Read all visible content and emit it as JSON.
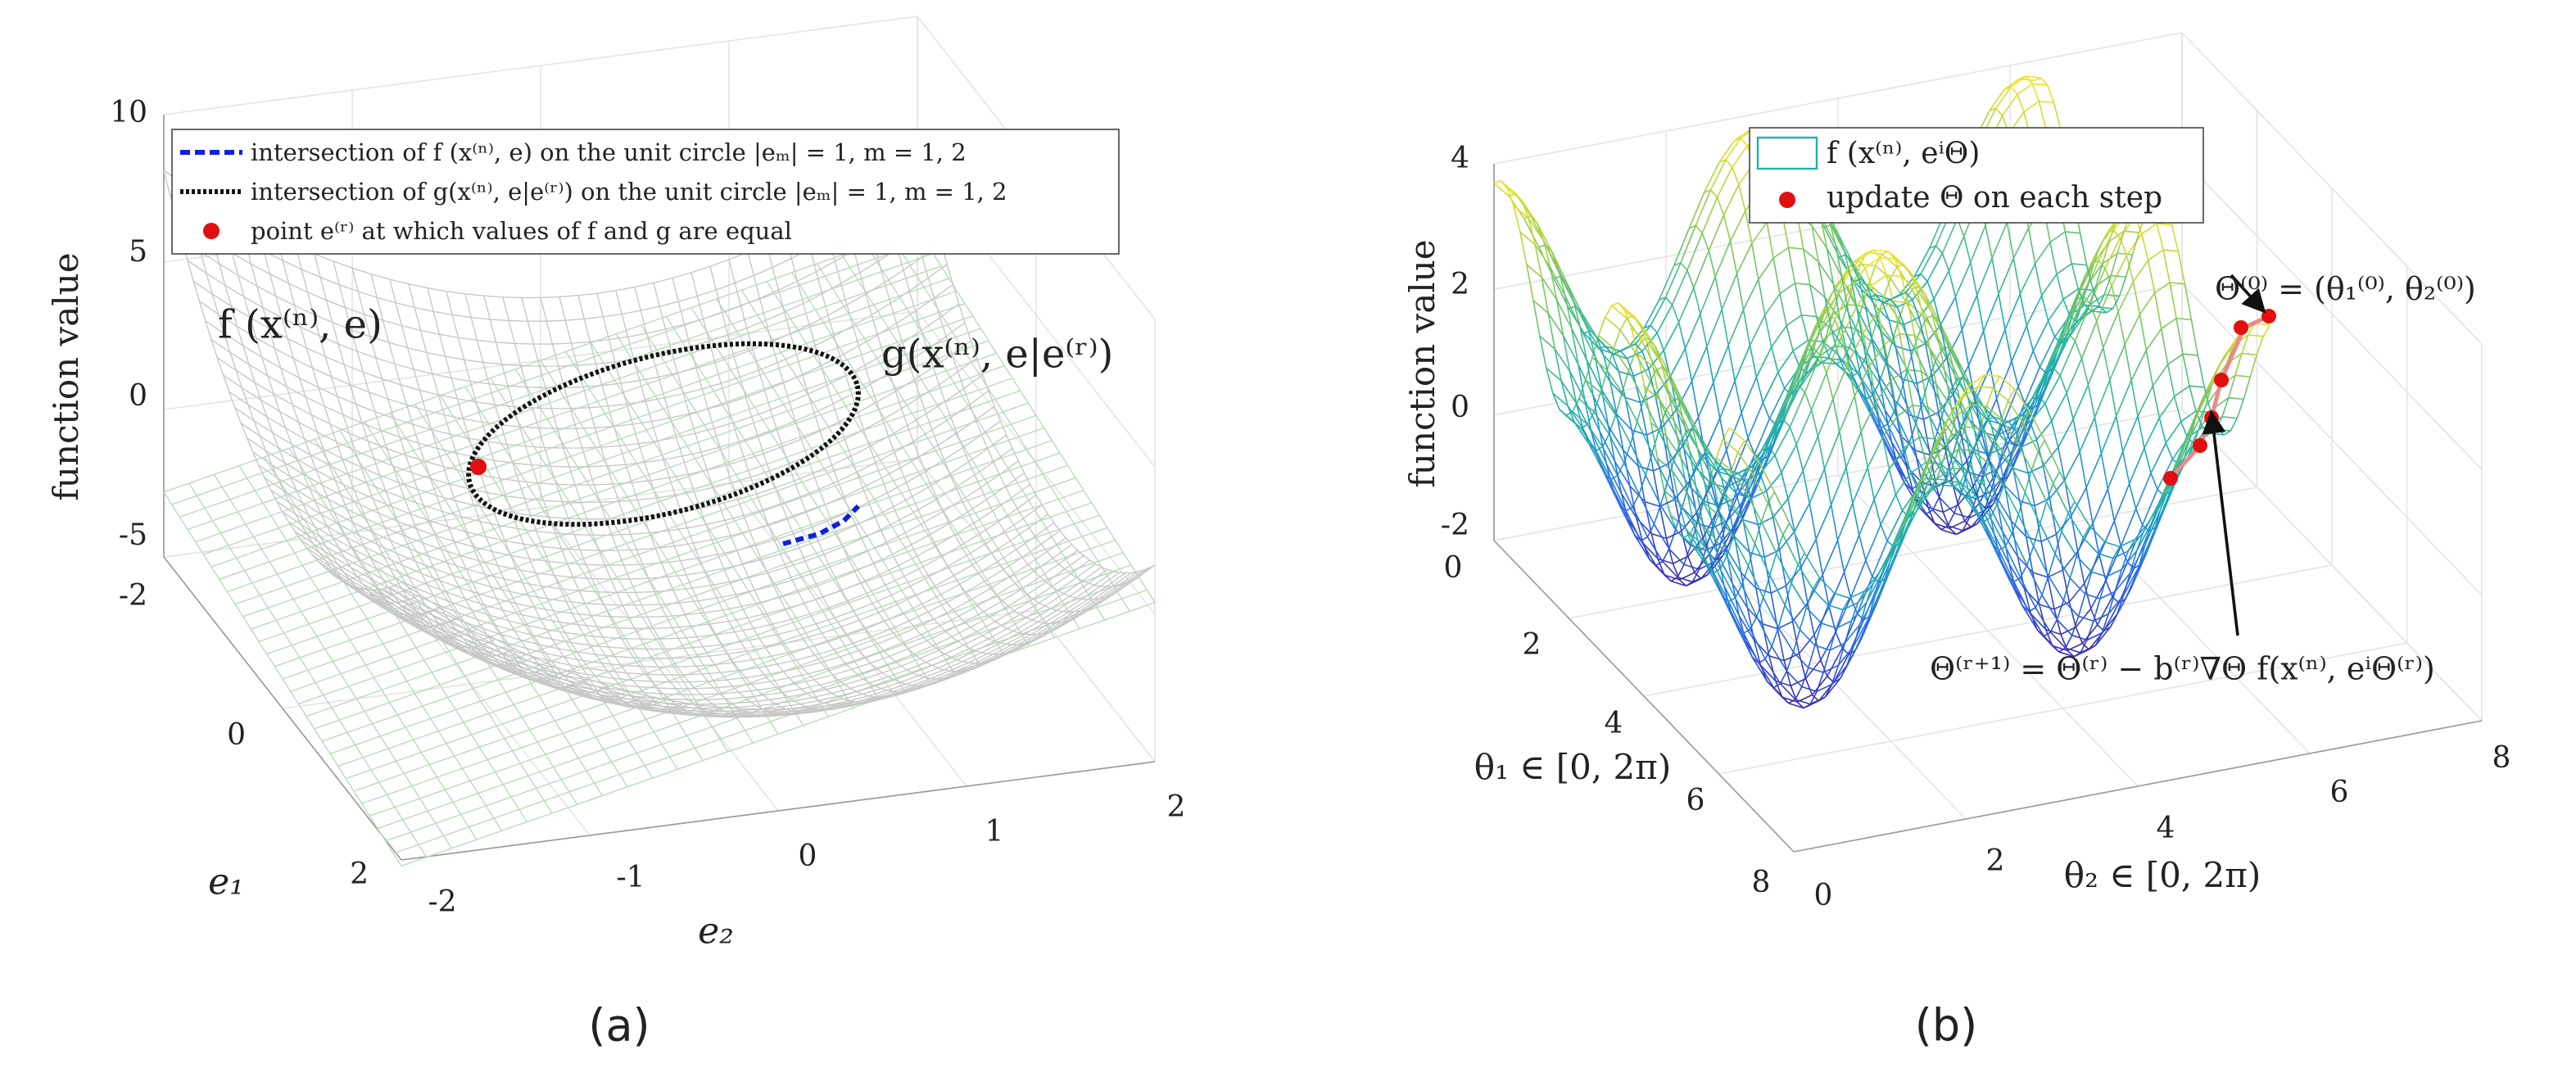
{
  "panel_a": {
    "z_label": "function value",
    "e1_label": "e₁",
    "e2_label": "e₂",
    "z_ticks": [
      "10",
      "5",
      "0",
      "-5"
    ],
    "e1_ticks": [
      "-2",
      "0",
      "2"
    ],
    "e2_ticks": [
      "-2",
      "-1",
      "0",
      "1",
      "2"
    ],
    "legend": [
      "intersection of f (x⁽ⁿ⁾, e) on the unit circle |eₘ| = 1, m = 1, 2",
      "intersection of g(x⁽ⁿ⁾, e|e⁽ʳ⁾) on the unit circle |eₘ| = 1, m = 1, 2",
      "point e⁽ʳ⁾ at which values of f and g are equal"
    ],
    "annotations": [
      "f (x⁽ⁿ⁾, e)",
      "g(x⁽ⁿ⁾, e|e⁽ʳ⁾)"
    ],
    "caption": "(a)"
  },
  "panel_b": {
    "z_label": "function value",
    "theta1_label": "θ₁ ∈ [0, 2π)",
    "theta2_label": "θ₂ ∈ [0, 2π)",
    "z_ticks": [
      "4",
      "2",
      "0",
      "-2"
    ],
    "theta1_ticks": [
      "0",
      "2",
      "4",
      "6",
      "8"
    ],
    "theta2_ticks": [
      "0",
      "2",
      "4",
      "6",
      "8"
    ],
    "legend": [
      "f (x⁽ⁿ⁾, eⁱΘ)",
      "update Θ on each step"
    ],
    "annotations": [
      "Θ⁽⁰⁾ = (θ₁⁽⁰⁾, θ₂⁽⁰⁾)",
      "Θ⁽ʳ⁺¹⁾ = Θ⁽ʳ⁾ − b⁽ʳ⁾∇Θ f(x⁽ⁿ⁾, eⁱΘ⁽ʳ⁾)"
    ],
    "caption": "(b)"
  }
}
